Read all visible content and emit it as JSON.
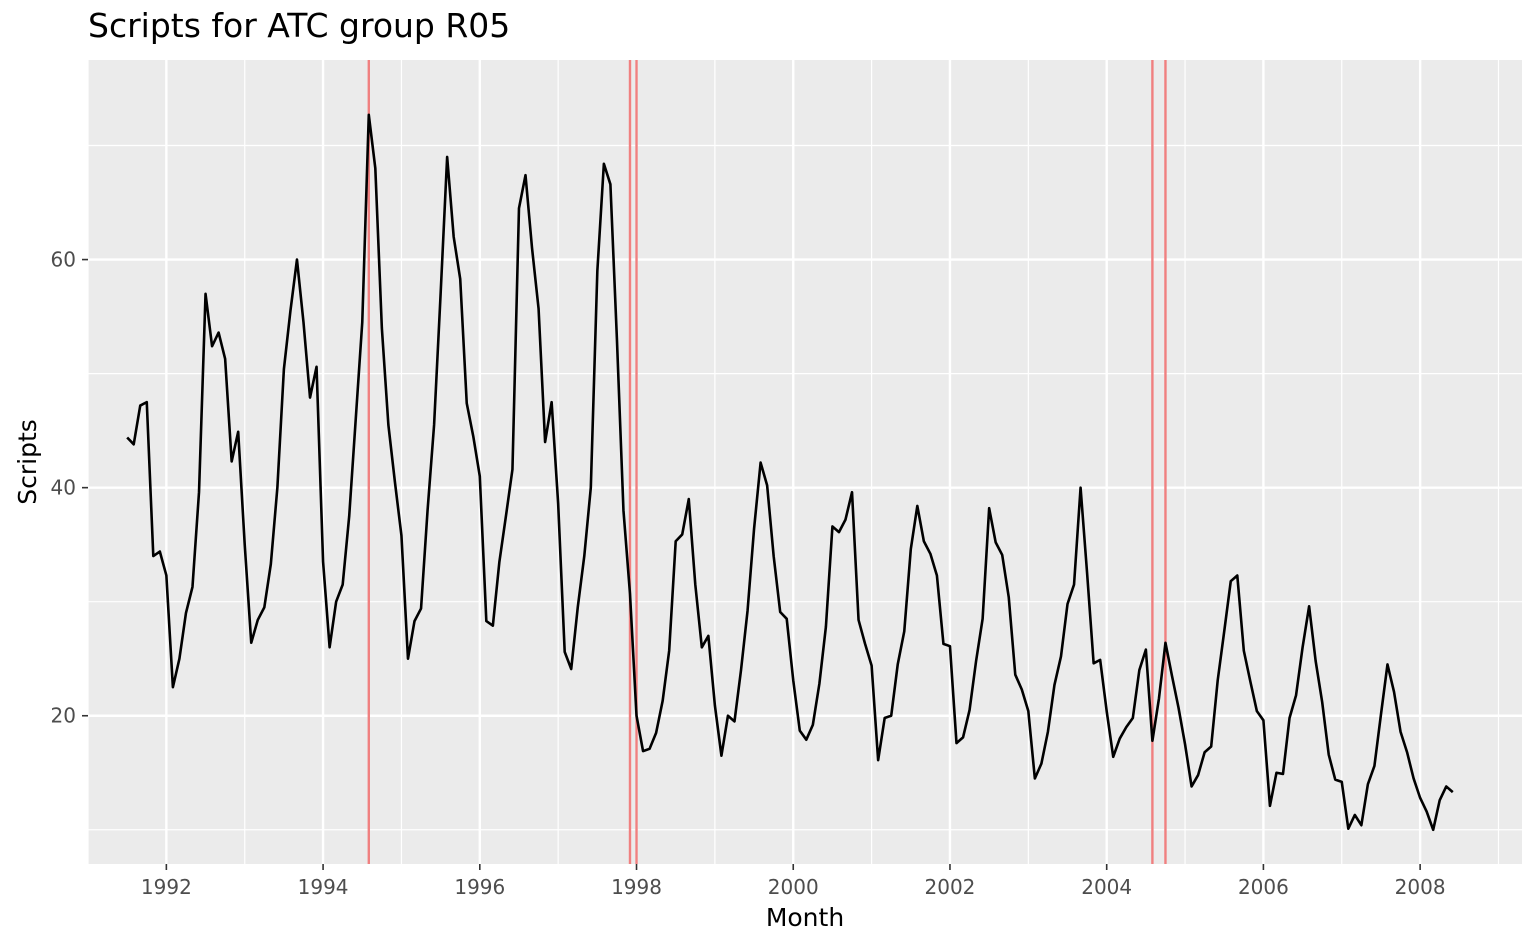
{
  "chart_data": {
    "type": "line",
    "title": "Scripts for ATC group R05",
    "xlabel": "Month",
    "ylabel": "Scripts",
    "xlim": [
      1991.0,
      2009.3
    ],
    "ylim": [
      7.0,
      77.5
    ],
    "x_ticks": [
      "1992",
      "1994",
      "1996",
      "1998",
      "2000",
      "2002",
      "2004",
      "2006",
      "2008"
    ],
    "y_ticks": [
      "20",
      "40",
      "60"
    ],
    "grid": true,
    "background": "#EBEBEB",
    "line_color": "#000000",
    "vline_color": "#F08080",
    "series": [
      {
        "start": "1991-07",
        "frequency": "monthly",
        "values": [
          44.4,
          43.8,
          47.2,
          47.5,
          34.0,
          34.4,
          32.3,
          22.5,
          25.0,
          29.0,
          31.3,
          39.6,
          57.0,
          52.4,
          53.6,
          51.3,
          42.3,
          44.9,
          35.0,
          26.4,
          28.4,
          29.5,
          33.3,
          40.0,
          50.4,
          55.5,
          60.0,
          54.5,
          47.9,
          50.6,
          33.5,
          26.0,
          30.0,
          31.5,
          37.5,
          46.0,
          54.5,
          72.7,
          68.0,
          54.0,
          45.5,
          40.5,
          35.8,
          25.0,
          28.3,
          29.4,
          38.0,
          45.5,
          57.0,
          69.0,
          62.0,
          58.3,
          47.4,
          44.5,
          41.0,
          28.3,
          27.9,
          33.5,
          37.5,
          41.6,
          64.5,
          67.4,
          61.0,
          55.7,
          44.0,
          47.5,
          38.6,
          25.6,
          24.1,
          29.5,
          34.0,
          40.0,
          59.0,
          68.4,
          66.6,
          53.0,
          38.0,
          30.7,
          20.0,
          16.9,
          17.1,
          18.5,
          21.3,
          25.7,
          35.3,
          35.9,
          39.0,
          31.5,
          26.0,
          27.0,
          20.9,
          16.5,
          20.0,
          19.5,
          24.0,
          29.2,
          36.4,
          42.2,
          40.2,
          34.0,
          29.1,
          28.5,
          23.1,
          18.7,
          17.9,
          19.2,
          22.8,
          27.8,
          36.6,
          36.1,
          37.2,
          39.6,
          28.4,
          26.3,
          24.4,
          16.1,
          19.8,
          20.0,
          24.5,
          27.4,
          34.6,
          38.4,
          35.3,
          34.2,
          32.3,
          26.3,
          26.1,
          17.6,
          18.1,
          20.5,
          24.8,
          28.5,
          38.2,
          35.2,
          34.1,
          30.4,
          23.6,
          22.3,
          20.4,
          14.5,
          15.8,
          18.6,
          22.7,
          25.2,
          29.8,
          31.5,
          40.0,
          32.5,
          24.6,
          24.9,
          20.4,
          16.4,
          18.0,
          19.0,
          19.8,
          24.0,
          25.8,
          17.8,
          21.5,
          26.4,
          23.5,
          20.7,
          17.5,
          13.8,
          14.8,
          16.8,
          17.3,
          23.1,
          27.4,
          31.8,
          32.3,
          25.7,
          23.0,
          20.4,
          19.6,
          12.1,
          15.0,
          14.9,
          19.8,
          21.8,
          26.0,
          29.6,
          24.8,
          21.2,
          16.6,
          14.4,
          14.2,
          10.1,
          11.3,
          10.4,
          14.0,
          15.6,
          20.1,
          24.5,
          22.1,
          18.6,
          16.8,
          14.5,
          12.8,
          11.6,
          10.0,
          12.6,
          13.8,
          13.3
        ]
      }
    ],
    "vlines": [
      "1994-08",
      "1997-12",
      "1998-01",
      "2004-08",
      "2004-10"
    ]
  }
}
